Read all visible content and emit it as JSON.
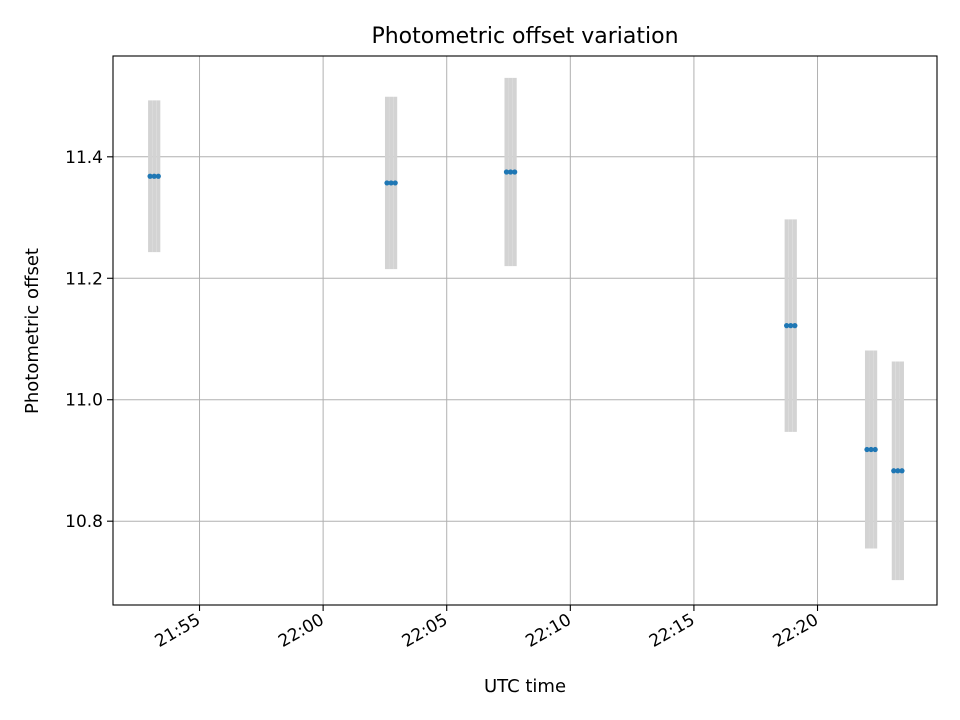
{
  "chart_data": {
    "type": "scatter",
    "title": "Photometric offset variation",
    "xlabel": "UTC time",
    "ylabel": "Photometric offset",
    "x_axis": {
      "kind": "time",
      "range": [
        "21:51:30",
        "22:24:50"
      ],
      "ticks": [
        "21:55",
        "22:00",
        "22:05",
        "22:10",
        "22:15",
        "22:20"
      ]
    },
    "y_axis": {
      "range": [
        10.662,
        11.566
      ],
      "ticks": [
        10.8,
        11.0,
        11.2,
        11.4
      ],
      "tick_labels": [
        "10.8",
        "11.0",
        "11.2",
        "11.4"
      ]
    },
    "grid": true,
    "legend": "none",
    "colors": {
      "marker": "#1f77b4",
      "errorbar": "#d3d3d3",
      "grid": "#b0b0b0"
    },
    "series": [
      {
        "points": [
          {
            "x": "21:53:00",
            "y": 11.368,
            "yerr": 0.125
          },
          {
            "x": "21:53:10",
            "y": 11.368,
            "yerr": 0.125
          },
          {
            "x": "21:53:20",
            "y": 11.368,
            "yerr": 0.125
          },
          {
            "x": "22:02:35",
            "y": 11.357,
            "yerr": 0.142
          },
          {
            "x": "22:02:45",
            "y": 11.357,
            "yerr": 0.142
          },
          {
            "x": "22:02:55",
            "y": 11.357,
            "yerr": 0.142
          },
          {
            "x": "22:07:25",
            "y": 11.375,
            "yerr": 0.155
          },
          {
            "x": "22:07:35",
            "y": 11.375,
            "yerr": 0.155
          },
          {
            "x": "22:07:45",
            "y": 11.375,
            "yerr": 0.155
          },
          {
            "x": "22:18:45",
            "y": 11.122,
            "yerr": 0.175
          },
          {
            "x": "22:18:55",
            "y": 11.122,
            "yerr": 0.175
          },
          {
            "x": "22:19:05",
            "y": 11.122,
            "yerr": 0.175
          },
          {
            "x": "22:22:00",
            "y": 10.918,
            "yerr": 0.163
          },
          {
            "x": "22:22:10",
            "y": 10.918,
            "yerr": 0.163
          },
          {
            "x": "22:22:20",
            "y": 10.918,
            "yerr": 0.163
          },
          {
            "x": "22:23:05",
            "y": 10.883,
            "yerr": 0.18
          },
          {
            "x": "22:23:15",
            "y": 10.883,
            "yerr": 0.18
          },
          {
            "x": "22:23:25",
            "y": 10.883,
            "yerr": 0.18
          }
        ]
      }
    ]
  }
}
